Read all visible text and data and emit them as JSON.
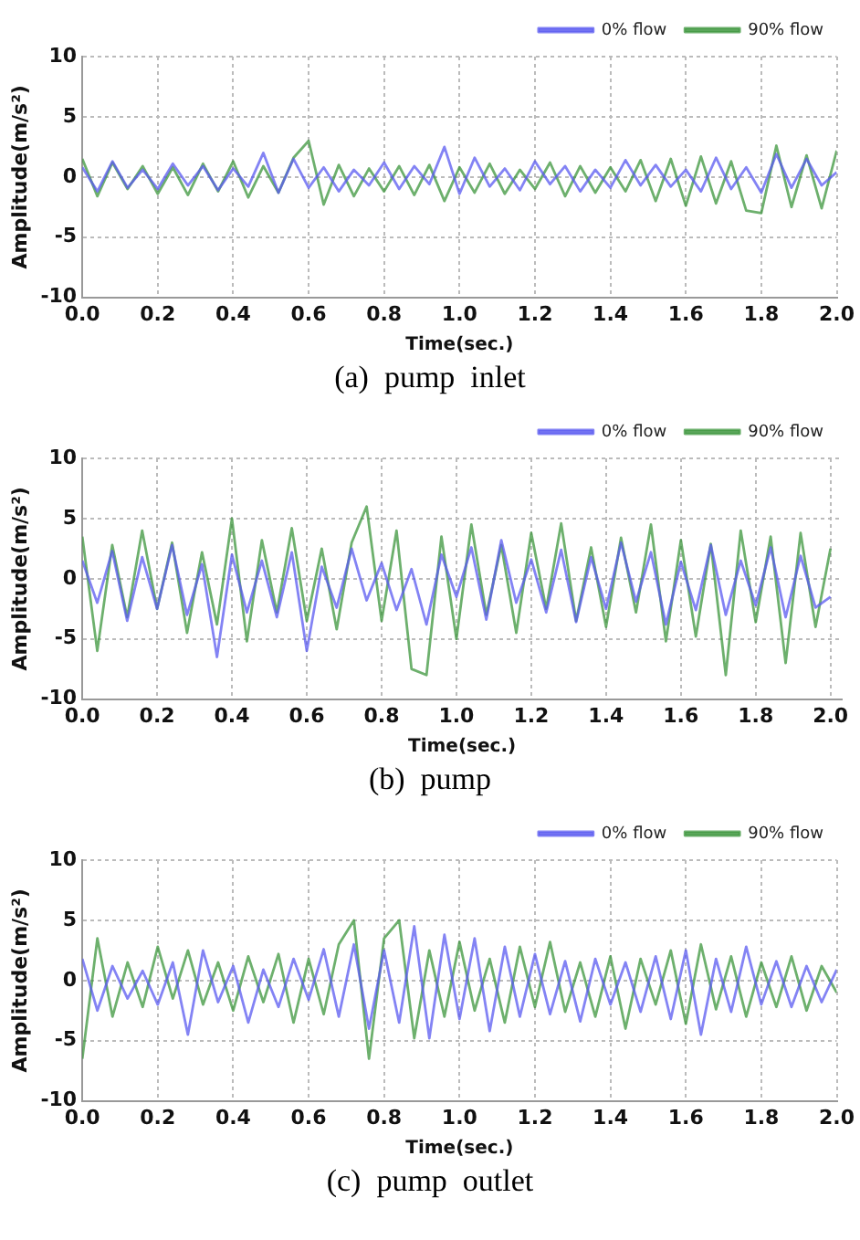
{
  "chart_data": [
    {
      "type": "line",
      "xlabel": "Time(sec.)",
      "ylabel": "Amplitude(m/s²)",
      "annotations": [
        "(a)  pump  inlet"
      ],
      "legend": "top right",
      "grid": true,
      "marker": "none",
      "line_style": "solid",
      "xlim": [
        0,
        2.0
      ],
      "ylim": [
        -10,
        10
      ],
      "xticks": [
        {
          "value": 0,
          "label": "0.0"
        },
        0.2,
        0.4,
        0.6,
        0.8,
        {
          "value": 1,
          "label": "1.0"
        },
        1.2,
        1.4,
        1.6,
        1.8,
        {
          "value": 2,
          "label": "2.0"
        }
      ],
      "yticks": [
        -10,
        -5,
        0,
        5,
        10
      ],
      "x": [
        0,
        0.04,
        0.08,
        0.12,
        0.16,
        0.2,
        0.24,
        0.28,
        0.32,
        0.36,
        0.4,
        0.44,
        0.48,
        0.52,
        0.56,
        0.6,
        0.64,
        0.68,
        0.72,
        0.76,
        0.8,
        0.84,
        0.88,
        0.92,
        0.96,
        1.0,
        1.04,
        1.08,
        1.12,
        1.16,
        1.2,
        1.24,
        1.28,
        1.32,
        1.36,
        1.4,
        1.44,
        1.48,
        1.52,
        1.56,
        1.6,
        1.64,
        1.68,
        1.72,
        1.76,
        1.8,
        1.84,
        1.88,
        1.92,
        1.96,
        2.0
      ],
      "series": [
        {
          "name": "0% flow",
          "color": "#5a5af0",
          "values": [
            0.8,
            -1.2,
            1.3,
            -0.9,
            0.6,
            -1.0,
            1.1,
            -0.7,
            0.9,
            -1.1,
            0.7,
            -0.8,
            2.0,
            -1.3,
            1.5,
            -0.9,
            0.8,
            -1.2,
            0.6,
            -0.7,
            1.2,
            -1.0,
            0.9,
            -0.6,
            2.5,
            -1.4,
            1.6,
            -0.8,
            0.7,
            -1.1,
            1.3,
            -0.6,
            0.9,
            -1.2,
            0.6,
            -0.9,
            1.4,
            -0.7,
            1.0,
            -0.8,
            0.6,
            -1.2,
            1.6,
            -1.0,
            0.8,
            -1.3,
            1.9,
            -0.9,
            1.5,
            -0.7,
            0.4
          ]
        },
        {
          "name": "90% flow",
          "color": "#3c963c",
          "values": [
            1.5,
            -1.6,
            1.2,
            -1.0,
            0.9,
            -1.4,
            0.8,
            -1.5,
            1.1,
            -1.2,
            1.3,
            -1.7,
            0.9,
            -1.3,
            1.6,
            3.0,
            -2.3,
            1.0,
            -1.6,
            0.7,
            -1.2,
            0.9,
            -1.5,
            1.0,
            -2.0,
            0.8,
            -1.3,
            1.1,
            -1.4,
            0.6,
            -1.0,
            1.2,
            -1.6,
            0.9,
            -1.3,
            0.8,
            -1.2,
            1.4,
            -2.0,
            1.5,
            -2.4,
            1.7,
            -2.2,
            1.3,
            -2.8,
            -3.0,
            2.6,
            -2.5,
            1.8,
            -2.6,
            2.2
          ]
        }
      ]
    },
    {
      "type": "line",
      "xlabel": "Time(sec.)",
      "ylabel": "Amplitude(m/s²)",
      "annotations": [
        "(b)  pump"
      ],
      "legend": "top right",
      "grid": true,
      "marker": "none",
      "line_style": "solid",
      "xlim": [
        0,
        2.03
      ],
      "ylim": [
        -10,
        10
      ],
      "xticks": [
        {
          "value": 0,
          "label": "0.0"
        },
        0.2,
        0.4,
        0.6,
        0.8,
        {
          "value": 1,
          "label": "1.0"
        },
        1.2,
        1.4,
        1.6,
        1.8,
        {
          "value": 2,
          "label": "2.0"
        }
      ],
      "yticks": [
        -10,
        -5,
        0,
        5,
        10
      ],
      "x": [
        0,
        0.04,
        0.08,
        0.12,
        0.16,
        0.2,
        0.24,
        0.28,
        0.32,
        0.36,
        0.4,
        0.44,
        0.48,
        0.52,
        0.56,
        0.6,
        0.64,
        0.68,
        0.72,
        0.76,
        0.8,
        0.84,
        0.88,
        0.92,
        0.96,
        1.0,
        1.04,
        1.08,
        1.12,
        1.16,
        1.2,
        1.24,
        1.28,
        1.32,
        1.36,
        1.4,
        1.44,
        1.48,
        1.52,
        1.56,
        1.6,
        1.64,
        1.68,
        1.72,
        1.76,
        1.8,
        1.84,
        1.88,
        1.92,
        1.96,
        2.0
      ],
      "series": [
        {
          "name": "0% flow",
          "color": "#5a5af0",
          "values": [
            1.5,
            -2.0,
            2.3,
            -3.5,
            1.8,
            -2.5,
            2.8,
            -3.0,
            1.2,
            -6.5,
            2.0,
            -2.8,
            1.5,
            -3.2,
            2.2,
            -6.0,
            1.0,
            -2.4,
            2.5,
            -1.8,
            1.3,
            -2.6,
            0.8,
            -3.8,
            2.0,
            -1.5,
            2.6,
            -3.4,
            3.2,
            -2.0,
            1.6,
            -2.8,
            2.4,
            -3.6,
            1.8,
            -2.5,
            3.0,
            -1.9,
            2.2,
            -3.8,
            1.4,
            -2.6,
            2.8,
            -3.0,
            1.5,
            -2.2,
            2.6,
            -3.2,
            1.9,
            -2.4,
            -1.5
          ]
        },
        {
          "name": "90% flow",
          "color": "#3c963c",
          "values": [
            3.5,
            -6.0,
            2.8,
            -3.2,
            4.0,
            -2.5,
            3.0,
            -4.5,
            2.2,
            -3.8,
            5.0,
            -5.2,
            3.2,
            -2.8,
            4.2,
            -3.5,
            2.5,
            -4.2,
            3.0,
            6.0,
            -3.5,
            4.0,
            -7.5,
            -8.0,
            3.5,
            -5.0,
            4.5,
            -3.0,
            2.8,
            -4.5,
            3.8,
            -2.5,
            4.6,
            -3.5,
            2.6,
            -4.0,
            3.4,
            -2.8,
            4.5,
            -5.2,
            3.2,
            -4.8,
            2.9,
            -8.0,
            4.0,
            -3.6,
            3.5,
            -7.0,
            3.8,
            -4.0,
            2.5
          ]
        }
      ]
    },
    {
      "type": "line",
      "xlabel": "Time(sec.)",
      "ylabel": "Amplitude(m/s²)",
      "annotations": [
        "(c)  pump  outlet"
      ],
      "legend": "top right",
      "grid": true,
      "marker": "none",
      "line_style": "solid",
      "xlim": [
        0,
        2.0
      ],
      "ylim": [
        -10,
        10
      ],
      "xticks": [
        {
          "value": 0,
          "label": "0.0"
        },
        0.2,
        0.4,
        0.6,
        0.8,
        {
          "value": 1,
          "label": "1.0"
        },
        1.2,
        1.4,
        1.6,
        1.8,
        {
          "value": 2,
          "label": "2.0"
        }
      ],
      "yticks": [
        -10,
        -5,
        0,
        5,
        10
      ],
      "x": [
        0,
        0.04,
        0.08,
        0.12,
        0.16,
        0.2,
        0.24,
        0.28,
        0.32,
        0.36,
        0.4,
        0.44,
        0.48,
        0.52,
        0.56,
        0.6,
        0.64,
        0.68,
        0.72,
        0.76,
        0.8,
        0.84,
        0.88,
        0.92,
        0.96,
        1.0,
        1.04,
        1.08,
        1.12,
        1.16,
        1.2,
        1.24,
        1.28,
        1.32,
        1.36,
        1.4,
        1.44,
        1.48,
        1.52,
        1.56,
        1.6,
        1.64,
        1.68,
        1.72,
        1.76,
        1.8,
        1.84,
        1.88,
        1.92,
        1.96,
        2.0
      ],
      "series": [
        {
          "name": "0% flow",
          "color": "#5a5af0",
          "values": [
            1.8,
            -2.5,
            1.2,
            -1.5,
            0.8,
            -2.0,
            1.5,
            -4.5,
            2.5,
            -1.8,
            1.2,
            -3.5,
            0.9,
            -2.2,
            1.8,
            -1.6,
            2.6,
            -3.0,
            3.0,
            -4.0,
            2.5,
            -3.5,
            4.5,
            -4.8,
            3.8,
            -3.2,
            3.5,
            -4.2,
            2.8,
            -3.0,
            2.2,
            -2.8,
            1.6,
            -3.4,
            1.8,
            -2.0,
            1.5,
            -2.6,
            2.0,
            -3.2,
            2.5,
            -4.5,
            1.8,
            -2.6,
            2.8,
            -2.0,
            1.6,
            -2.2,
            1.2,
            -1.8,
            0.9
          ]
        },
        {
          "name": "90% flow",
          "color": "#3c963c",
          "values": [
            -6.5,
            3.5,
            -3.0,
            1.5,
            -2.2,
            2.8,
            -1.5,
            2.5,
            -2.0,
            1.5,
            -2.5,
            2.0,
            -1.8,
            2.2,
            -3.5,
            1.8,
            -2.8,
            3.0,
            5.0,
            -6.5,
            3.5,
            5.0,
            -4.8,
            2.5,
            -3.0,
            3.2,
            -2.5,
            1.8,
            -3.5,
            2.8,
            -2.2,
            3.2,
            -2.6,
            1.5,
            -3.0,
            2.0,
            -4.0,
            1.8,
            -2.0,
            2.5,
            -3.6,
            3.0,
            -2.4,
            2.0,
            -3.0,
            1.5,
            -2.2,
            2.0,
            -2.5,
            1.2,
            -1.0
          ]
        }
      ]
    }
  ]
}
